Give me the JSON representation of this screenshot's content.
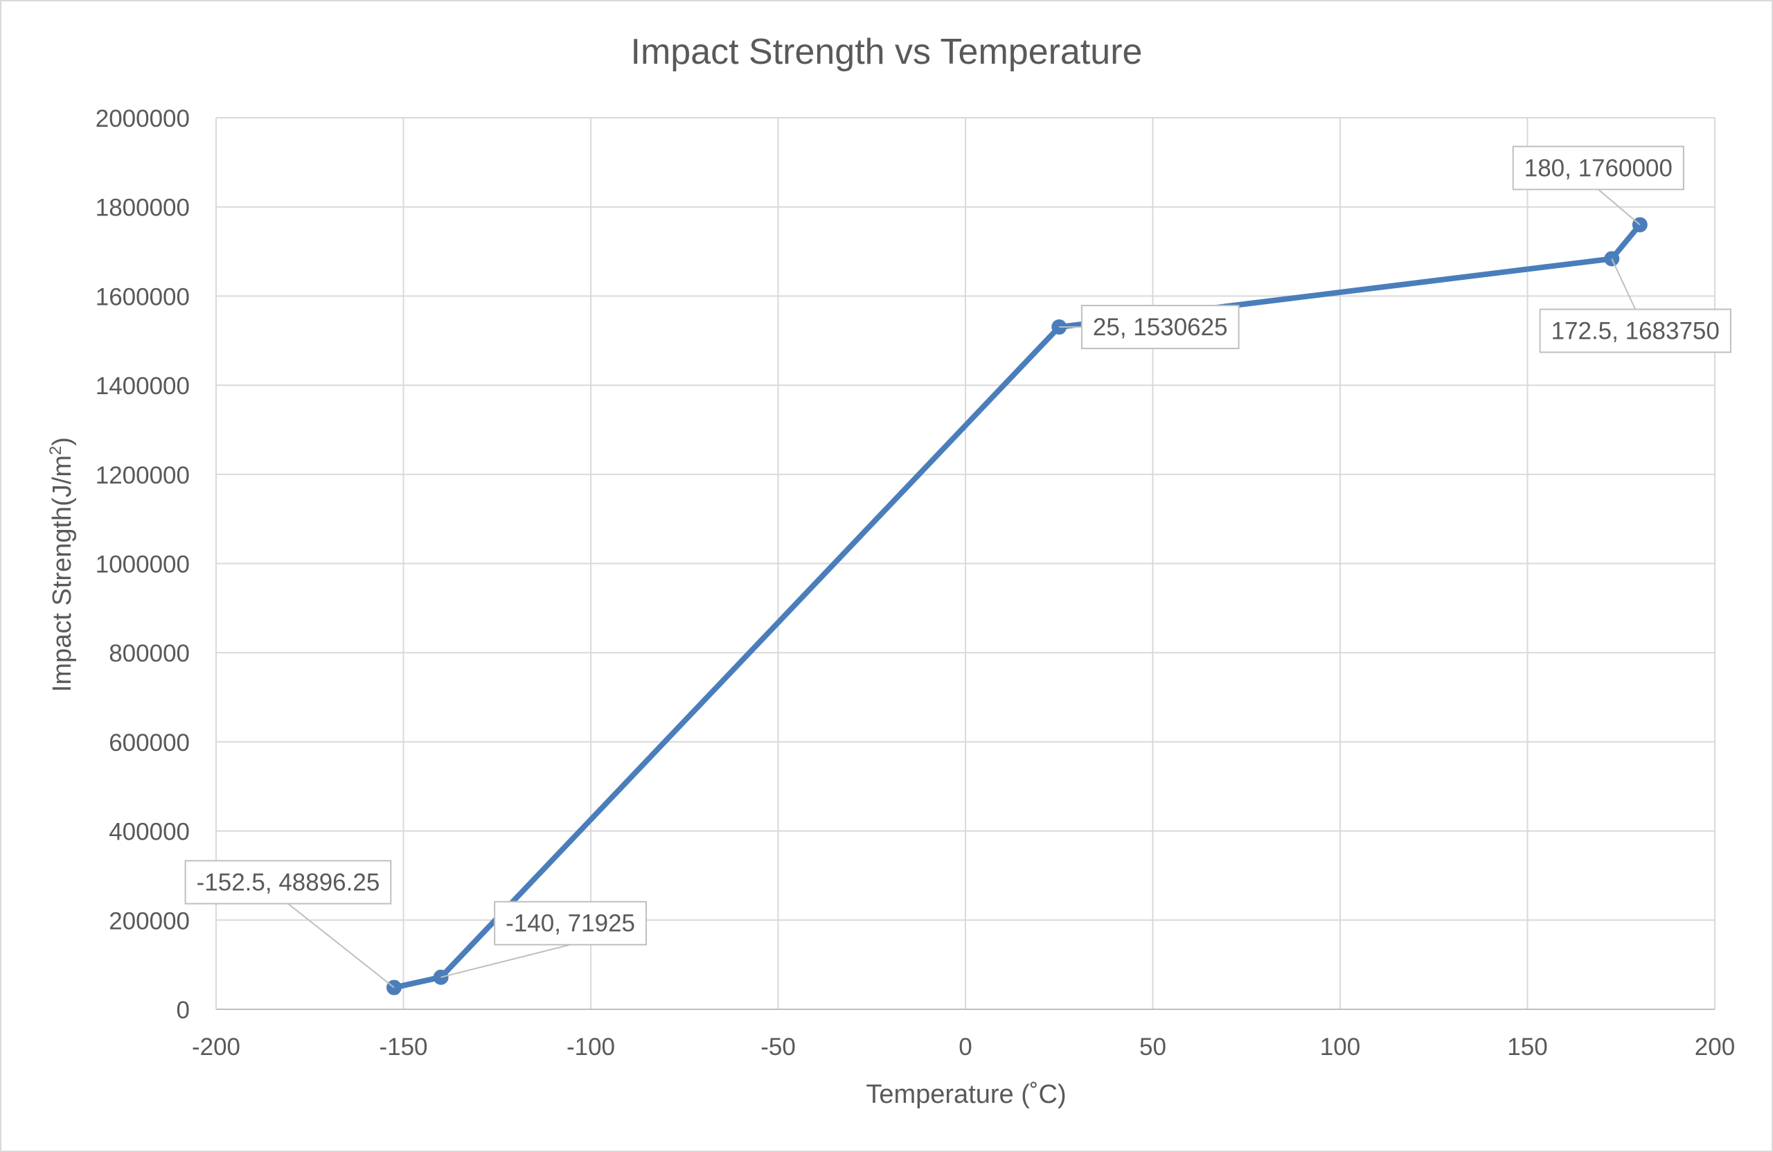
{
  "chart_data": {
    "type": "scatter",
    "title": "Impact Strength vs Temperature",
    "xlabel": "Temperature (˚C)",
    "ylabel_prefix": "Impact Strength(J/m",
    "ylabel_superscript": "2",
    "ylabel_suffix": ")",
    "xlim": [
      -200,
      200
    ],
    "ylim": [
      0,
      2000000
    ],
    "xticks": [
      -200,
      -150,
      -100,
      -50,
      0,
      50,
      100,
      150,
      200
    ],
    "yticks": [
      0,
      200000,
      400000,
      600000,
      800000,
      1000000,
      1200000,
      1400000,
      1600000,
      1800000,
      2000000
    ],
    "grid": true,
    "legend": "none",
    "series": [
      {
        "x": [
          -152.5,
          -140,
          25,
          172.5,
          180
        ],
        "y": [
          48896.25,
          71925,
          1530625,
          1683750,
          1760000
        ],
        "labels": [
          "-152.5, 48896.25",
          "-140, 71925",
          "25, 1530625",
          "172.5, 1683750",
          "180, 1760000"
        ],
        "color": "#4a7ebb",
        "line": "straight-with-markers"
      }
    ]
  },
  "colors": {
    "series": "#4a7ebb",
    "grid": "#d9d9d9",
    "text": "#595959",
    "callout_border": "#bfbfbf",
    "frame": "#d9d9d9"
  }
}
